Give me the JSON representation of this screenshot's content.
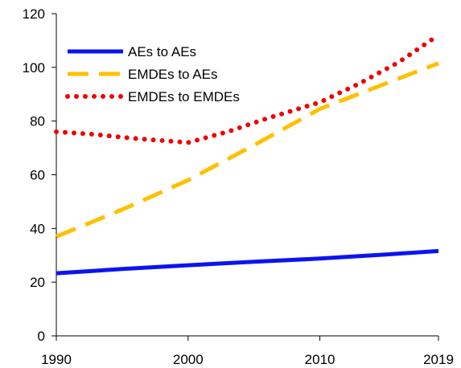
{
  "chart_data": {
    "type": "line",
    "title": "",
    "xlabel": "",
    "ylabel": "",
    "xlim": [
      1990,
      2019
    ],
    "ylim": [
      0,
      120
    ],
    "xticks": [
      1990,
      2000,
      2010,
      2019
    ],
    "xtick_labels": [
      "1990",
      "2000",
      "2010",
      "2019"
    ],
    "yticks": [
      0,
      20,
      40,
      60,
      80,
      100,
      120
    ],
    "ytick_labels": [
      "0",
      "20",
      "40",
      "60",
      "80",
      "100",
      "120"
    ],
    "grid": false,
    "legend_position": "top-left",
    "series": [
      {
        "name": "AEs to AEs",
        "color": "#0a14f0",
        "style": "solid",
        "x": [
          1990,
          1995,
          2000,
          2005,
          2010,
          2015,
          2019
        ],
        "y": [
          23.3,
          24.9,
          26.3,
          27.6,
          28.8,
          30.3,
          31.6
        ]
      },
      {
        "name": "EMDEs to AEs",
        "color": "#ffc000",
        "style": "dashed",
        "x": [
          1990,
          1995,
          2000,
          2005,
          2010,
          2015,
          2019
        ],
        "y": [
          37,
          47,
          58,
          71,
          84.5,
          94,
          101.5
        ]
      },
      {
        "name": "EMDEs to EMDEs",
        "color": "#f00000",
        "style": "dotted",
        "x": [
          1990,
          1993,
          1996,
          2000,
          2003,
          2006,
          2010,
          2013,
          2016,
          2019
        ],
        "y": [
          76,
          75,
          73.5,
          72,
          76,
          81,
          87,
          94,
          102,
          112
        ]
      }
    ]
  }
}
